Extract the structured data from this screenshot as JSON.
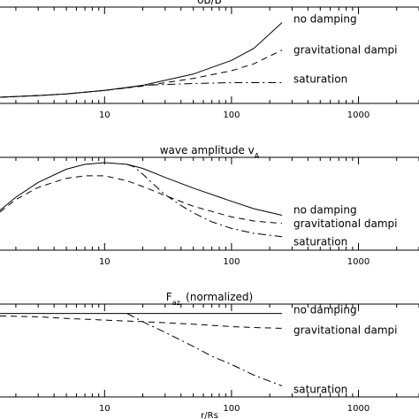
{
  "chart_data": [
    {
      "type": "line",
      "title": "δB/B",
      "xscale": "log",
      "xlim": [
        1.5,
        3000
      ],
      "xticks": [
        "10",
        "100",
        "1000"
      ],
      "ylim": [
        0,
        1
      ],
      "series": [
        {
          "name": "no damping",
          "style": "solid",
          "x": [
            1.5,
            3,
            5,
            10,
            20,
            50,
            100,
            150,
            250
          ],
          "y": [
            0.01,
            0.03,
            0.05,
            0.09,
            0.15,
            0.28,
            0.44,
            0.58,
            0.88
          ]
        },
        {
          "name": "gravitational dampi",
          "style": "dashed",
          "x": [
            1.5,
            3,
            5,
            10,
            20,
            50,
            100,
            150,
            250
          ],
          "y": [
            0.01,
            0.03,
            0.05,
            0.09,
            0.14,
            0.23,
            0.32,
            0.4,
            0.56
          ]
        },
        {
          "name": "saturation",
          "style": "dashdot",
          "x": [
            1.5,
            3,
            5,
            10,
            15,
            20,
            50,
            100,
            250
          ],
          "y": [
            0.01,
            0.03,
            0.05,
            0.09,
            0.12,
            0.15,
            0.17,
            0.18,
            0.18
          ]
        }
      ]
    },
    {
      "type": "line",
      "title": "wave amplitude v",
      "title_subscript": "A",
      "xscale": "log",
      "xlim": [
        1.5,
        3000
      ],
      "xticks": [
        "10",
        "100",
        "1000"
      ],
      "ylim": [
        0,
        1
      ],
      "series": [
        {
          "name": "no damping",
          "style": "solid",
          "x": [
            1.5,
            2,
            3,
            5,
            7,
            10,
            15,
            20,
            30,
            50,
            100,
            150,
            250
          ],
          "y": [
            0.42,
            0.58,
            0.76,
            0.92,
            0.98,
            1.0,
            0.98,
            0.93,
            0.82,
            0.69,
            0.53,
            0.44,
            0.36
          ]
        },
        {
          "name": "gravitational dampi",
          "style": "dashed",
          "x": [
            1.5,
            2,
            3,
            5,
            7,
            10,
            15,
            20,
            30,
            50,
            100,
            150,
            250
          ],
          "y": [
            0.4,
            0.55,
            0.7,
            0.81,
            0.84,
            0.84,
            0.78,
            0.71,
            0.6,
            0.47,
            0.34,
            0.29,
            0.26
          ]
        },
        {
          "name": "saturation",
          "style": "dashdot",
          "x": [
            15,
            17,
            20,
            25,
            30,
            40,
            50,
            70,
            100,
            150,
            250
          ],
          "y": [
            0.98,
            0.95,
            0.86,
            0.72,
            0.61,
            0.48,
            0.39,
            0.28,
            0.2,
            0.14,
            0.1
          ]
        }
      ]
    },
    {
      "type": "line",
      "title": "F",
      "title_subscript": "az.",
      "title_suffix": " (normalized)",
      "xlabel": "r/Rs",
      "xscale": "log",
      "xlim": [
        1.5,
        3000
      ],
      "xticks": [
        "10",
        "100",
        "1000"
      ],
      "ylim": [
        0,
        1
      ],
      "series": [
        {
          "name": "no damping",
          "style": "solid",
          "x": [
            1.5,
            10,
            100,
            250
          ],
          "y": [
            0.95,
            0.95,
            0.95,
            0.95
          ]
        },
        {
          "name": "gravitational dampi",
          "style": "dashed",
          "x": [
            1.5,
            3,
            5,
            10,
            20,
            50,
            100,
            150,
            250
          ],
          "y": [
            0.92,
            0.91,
            0.89,
            0.87,
            0.85,
            0.82,
            0.79,
            0.78,
            0.77
          ]
        },
        {
          "name": "saturation",
          "style": "dashdot",
          "x": [
            15,
            20,
            30,
            50,
            70,
            100,
            150,
            250
          ],
          "y": [
            0.95,
            0.85,
            0.72,
            0.55,
            0.43,
            0.33,
            0.2,
            0.07
          ]
        }
      ]
    }
  ]
}
